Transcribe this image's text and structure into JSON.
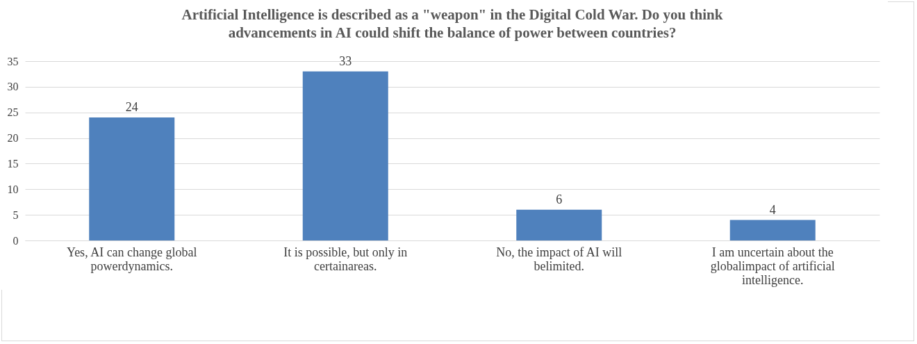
{
  "chart_data": {
    "type": "bar",
    "title": "Artificial Intelligence is described as a \"weapon\" in the Digital Cold War. Do you think advancements in AI could shift the balance of power between countries?",
    "categories": [
      "Yes, AI can change global powerdynamics.",
      "It is possible, but only in certainareas.",
      "No, the impact of AI will belimited.",
      "I am uncertain about the globalimpact of artificial intelligence."
    ],
    "values": [
      24,
      33,
      6,
      4
    ],
    "color": "#4f81bd",
    "ylim": [
      0,
      35
    ],
    "yticks": [
      0,
      5,
      10,
      15,
      20,
      25,
      30,
      35
    ],
    "grid": "y",
    "data_labels": true
  }
}
